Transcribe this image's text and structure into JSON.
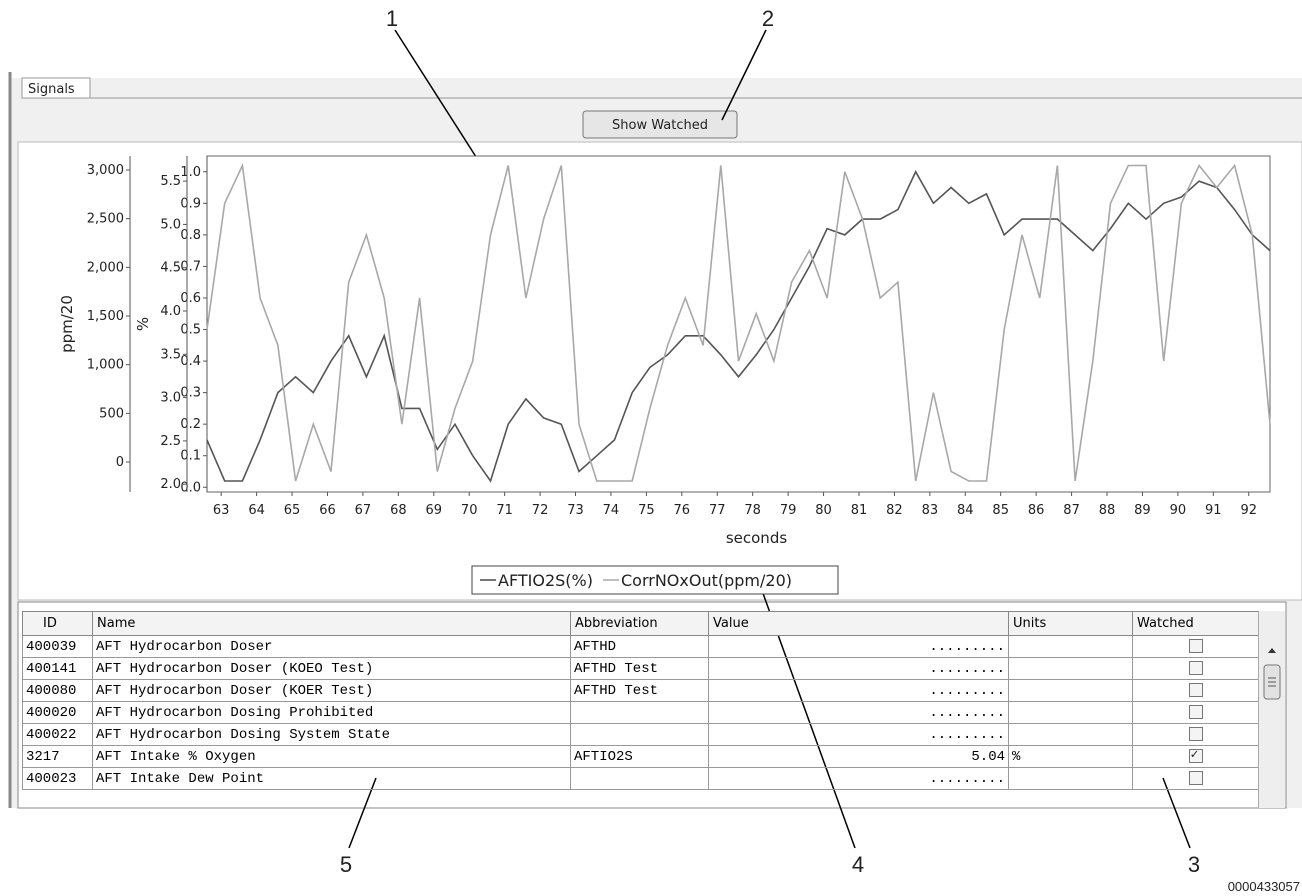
{
  "callouts": [
    "1",
    "2",
    "3",
    "4",
    "5"
  ],
  "figure_id": "0000433057",
  "tab": "Signals",
  "button": "Show Watched",
  "chart_data": {
    "type": "line",
    "x_label": "seconds",
    "xlim": [
      62.6,
      92.6
    ],
    "xticks": [
      63,
      64,
      65,
      66,
      67,
      68,
      69,
      70,
      71,
      72,
      73,
      74,
      75,
      76,
      77,
      78,
      79,
      80,
      81,
      82,
      83,
      84,
      85,
      86,
      87,
      88,
      89,
      90,
      91,
      92
    ],
    "x": [
      62.6,
      63.1,
      63.6,
      64.1,
      64.6,
      65.1,
      65.6,
      66.1,
      66.6,
      67.1,
      67.6,
      68.1,
      68.6,
      69.1,
      69.6,
      70.1,
      70.6,
      71.1,
      71.6,
      72.1,
      72.6,
      73.1,
      73.6,
      74.1,
      74.6,
      75.1,
      75.6,
      76.1,
      76.6,
      77.1,
      77.6,
      78.1,
      78.6,
      79.1,
      79.6,
      80.1,
      80.6,
      81.1,
      81.6,
      82.1,
      82.6,
      83.1,
      83.6,
      84.1,
      84.6,
      85.1,
      85.6,
      86.1,
      86.6,
      87.1,
      87.6,
      88.1,
      88.6,
      89.1,
      89.6,
      90.1,
      90.6,
      91.1,
      91.6,
      92.1,
      92.6
    ],
    "ylim": [
      -0.015,
      1.05
    ],
    "yticks": [
      {
        "value": 0,
        "label": "0.0"
      },
      0.1,
      0.2,
      0.3,
      0.4,
      0.5,
      0.6,
      0.7,
      0.8,
      0.9,
      {
        "value": 1,
        "label": "1.0"
      }
    ],
    "y2_label": "%",
    "y2lim": [
      1.91,
      5.79
    ],
    "y2ticks": [
      {
        "value": 2,
        "label": "2.0"
      },
      2.5,
      {
        "value": 3,
        "label": "3.0"
      },
      3.5,
      {
        "value": 4,
        "label": "4.0"
      },
      4.5,
      {
        "value": 5,
        "label": "5.0"
      },
      5.5
    ],
    "y3_label": "ppm/20",
    "y3lim": [
      -308,
      3144
    ],
    "y3ticks": [
      0,
      500,
      {
        "value": 1000,
        "label": "1,000"
      },
      {
        "value": 1500,
        "label": "1,500"
      },
      {
        "value": 2000,
        "label": "2,000"
      },
      {
        "value": 2500,
        "label": "2,500"
      },
      {
        "value": 3000,
        "label": "3,000"
      }
    ],
    "series": [
      {
        "name": "AFTIO2S(%)",
        "color": "#555555",
        "values": [
          0.15,
          0.02,
          0.02,
          0.15,
          0.3,
          0.35,
          0.3,
          0.4,
          0.48,
          0.35,
          0.48,
          0.25,
          0.25,
          0.12,
          0.2,
          0.1,
          0.02,
          0.2,
          0.28,
          0.22,
          0.2,
          0.05,
          0.1,
          0.15,
          0.3,
          0.38,
          0.42,
          0.48,
          0.48,
          0.42,
          0.35,
          0.42,
          0.5,
          0.6,
          0.7,
          0.82,
          0.8,
          0.85,
          0.85,
          0.88,
          1.0,
          0.9,
          0.95,
          0.9,
          0.93,
          0.8,
          0.85,
          0.85,
          0.85,
          0.8,
          0.75,
          0.82,
          0.9,
          0.85,
          0.9,
          0.92,
          0.97,
          0.95,
          0.88,
          0.8,
          0.75
        ]
      },
      {
        "name": "CorrNOxOut(ppm/20)",
        "color": "#a8a8a8",
        "values": [
          0.5,
          0.9,
          1.02,
          0.6,
          0.45,
          0.02,
          0.2,
          0.05,
          0.65,
          0.8,
          0.6,
          0.2,
          0.6,
          0.05,
          0.25,
          0.4,
          0.8,
          1.02,
          0.6,
          0.85,
          1.02,
          0.2,
          0.02,
          0.02,
          0.02,
          0.25,
          0.45,
          0.6,
          0.45,
          1.02,
          0.4,
          0.55,
          0.4,
          0.65,
          0.75,
          0.6,
          1.0,
          0.85,
          0.6,
          0.65,
          0.02,
          0.3,
          0.05,
          0.02,
          0.02,
          0.5,
          0.8,
          0.6,
          1.02,
          0.02,
          0.4,
          0.9,
          1.02,
          1.02,
          0.4,
          0.9,
          1.02,
          0.95,
          1.02,
          0.8,
          0.2
        ]
      }
    ]
  },
  "table": {
    "columns": [
      "ID",
      "Name",
      "Abbreviation",
      "Value",
      "Units",
      "Watched"
    ],
    "rows": [
      {
        "id": "400039",
        "name": "AFT Hydrocarbon Doser",
        "abbreviation": "AFTHD",
        "value": ".........",
        "watched": false
      },
      {
        "id": "400141",
        "name": "AFT Hydrocarbon Doser (KOEO Test)",
        "abbreviation": "AFTHD Test",
        "value": ".........",
        "watched": false
      },
      {
        "id": "400080",
        "name": "AFT Hydrocarbon Doser (KOER Test)",
        "abbreviation": "AFTHD Test",
        "value": ".........",
        "watched": false
      },
      {
        "id": "400020",
        "name": "AFT Hydrocarbon Dosing Prohibited",
        "value": ".........",
        "watched": false
      },
      {
        "id": "400022",
        "name": "AFT Hydrocarbon Dosing System State",
        "value": ".........",
        "watched": false
      },
      {
        "id": "3217",
        "name": "AFT Intake % Oxygen",
        "abbreviation": "AFTIO2S",
        "value": "5.04",
        "units": "%",
        "watched": true
      },
      {
        "id": "400023",
        "name": "AFT Intake Dew Point",
        "value": ".........",
        "watched": false
      }
    ]
  }
}
